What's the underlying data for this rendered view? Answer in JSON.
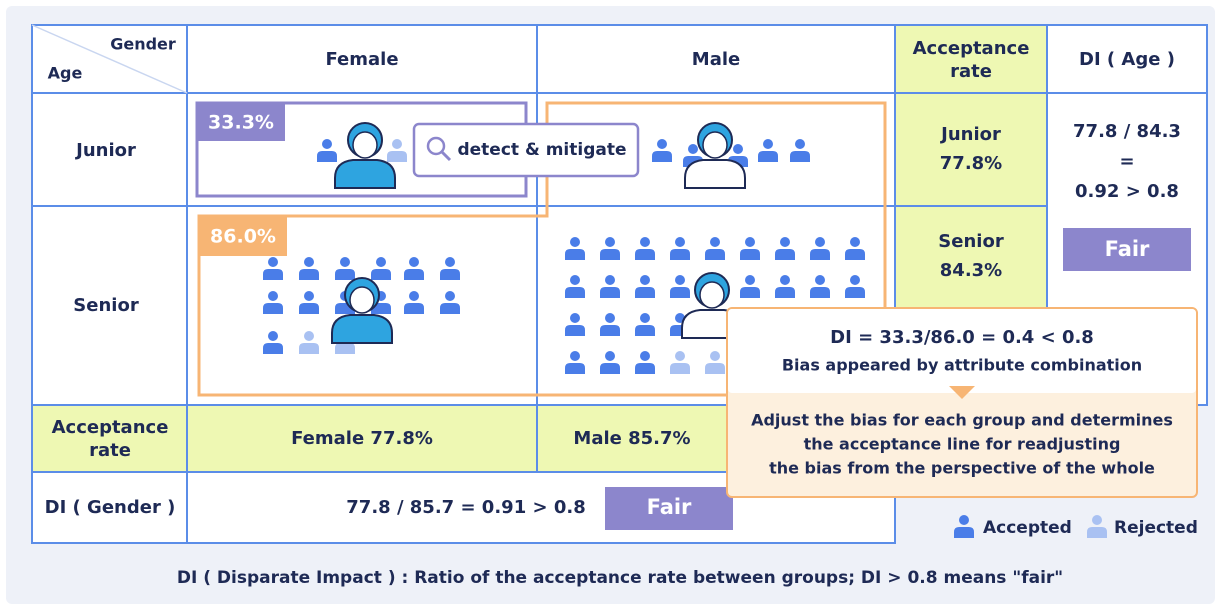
{
  "header": {
    "corner_col": "Gender",
    "corner_row": "Age",
    "columns": [
      "Female",
      "Male",
      [
        "Acceptance",
        "rate"
      ],
      "DI ( Age )"
    ]
  },
  "rows": [
    "Junior",
    "Senior"
  ],
  "badges": {
    "junior_female": "33.3%",
    "senior_female": "86.0%"
  },
  "detect": "detect & mitigate",
  "acceptance_by_age": [
    [
      "Junior",
      "77.8%"
    ],
    [
      "Senior",
      "84.3%"
    ]
  ],
  "di_age": {
    "lines": [
      "77.8 / 84.3",
      "=",
      "0.92 > 0.8"
    ],
    "verdict": "Fair"
  },
  "acceptance_row": {
    "label": [
      "Acceptance",
      "rate"
    ],
    "female": "Female 77.8%",
    "male": "Male 85.7%"
  },
  "di_gender": {
    "label": "DI ( Gender )",
    "formula": "77.8 / 85.7 = 0.91 > 0.8",
    "verdict": "Fair"
  },
  "callout": {
    "formula": "DI = 33.3/86.0 = 0.4 < 0.8",
    "note": "Bias appeared by attribute combination",
    "adjust": [
      "Adjust the bias for each group and determines",
      "the acceptance line for readjusting",
      "the bias from the perspective of the whole"
    ]
  },
  "legend": {
    "accepted": "Accepted",
    "rejected": "Rejected"
  },
  "footnote": "DI ( Disparate Impact ) : Ratio of the acceptance rate between groups; DI > 0.8 means \"fair\""
}
